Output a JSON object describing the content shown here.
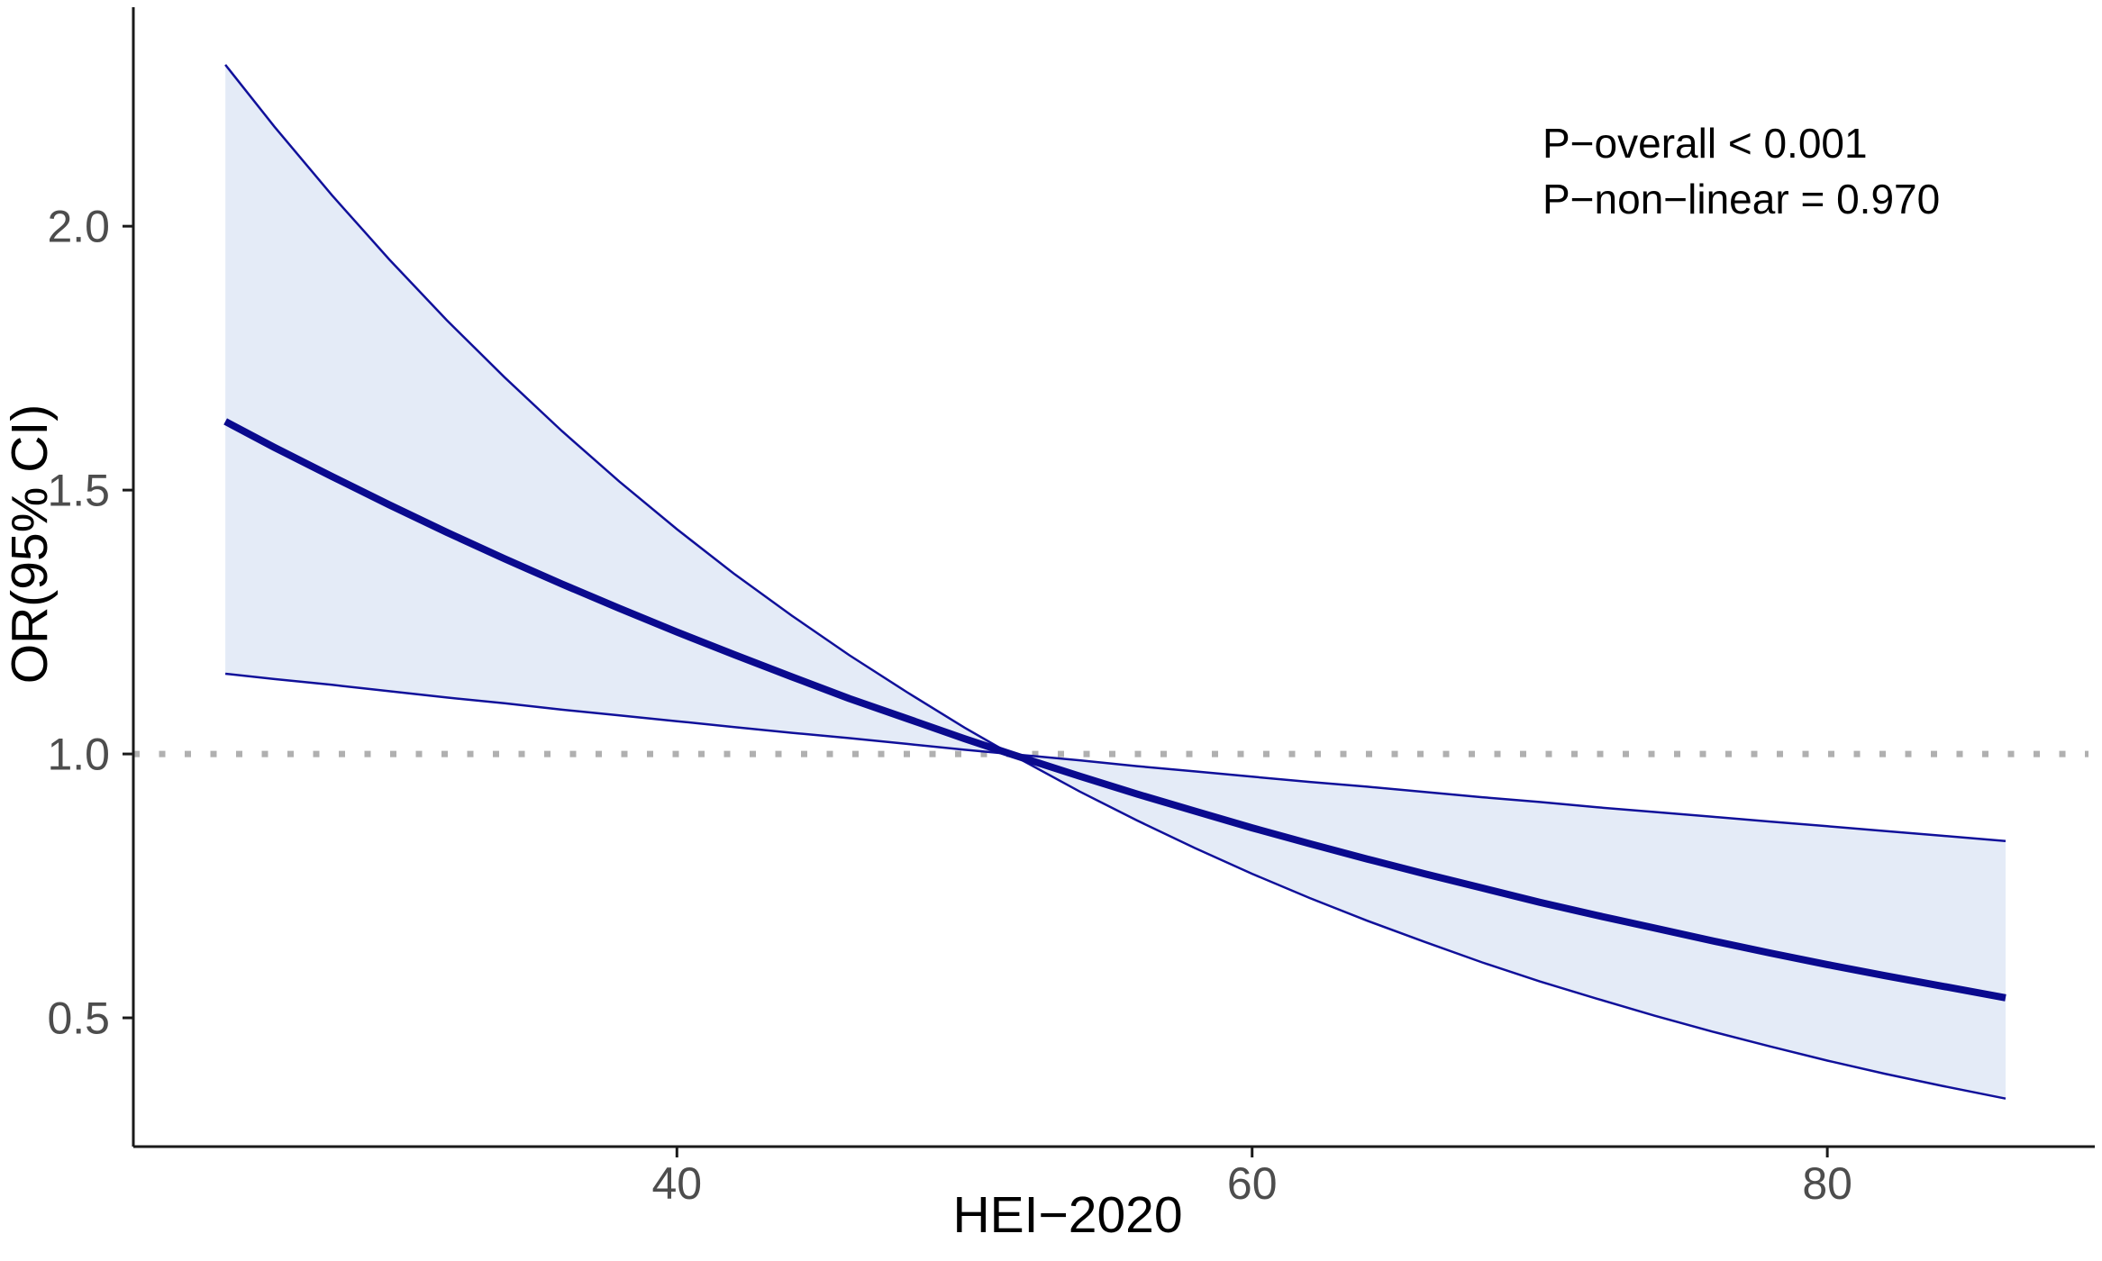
{
  "annotations": {
    "p_overall": "P−overall < 0.001",
    "p_nonlinear": "P−non−linear = 0.970"
  },
  "colors": {
    "line": "#0a0a8e",
    "ci_line": "#10109a",
    "ribbon": "#e4ebf7",
    "reference_line": "#b0b0b0",
    "axis_line": "#1a1a1a",
    "tick_label": "#4d4d4d",
    "annotation_text": "#000000"
  },
  "chart_data": {
    "type": "line",
    "title": "",
    "xlabel": "HEI−2020",
    "ylabel": "OR(95% CI)",
    "x_ticks": [
      40,
      60,
      80
    ],
    "y_ticks": [
      0.5,
      1.0,
      1.5,
      2.0
    ],
    "xlim": [
      21.1,
      89.3
    ],
    "ylim": [
      0.256,
      2.415
    ],
    "grid": "off",
    "legend": "none",
    "reference_line_y": 1.0,
    "or_equals_1_at_x": 51.6,
    "annotations": [
      "P−overall < 0.001",
      "P−non−linear = 0.970"
    ],
    "series": [
      {
        "name": "OR estimate",
        "style": "thick solid navy line"
      },
      {
        "name": "95% CI band",
        "style": "light blue ribbon with thin navy borders"
      }
    ],
    "points": [
      {
        "x": 24.3,
        "or": 1.63,
        "lcl": 1.152,
        "ucl": 2.306
      },
      {
        "x": 26,
        "or": 1.581,
        "lcl": 1.142,
        "ucl": 2.189
      },
      {
        "x": 28,
        "or": 1.526,
        "lcl": 1.131,
        "ucl": 2.059
      },
      {
        "x": 30,
        "or": 1.472,
        "lcl": 1.119,
        "ucl": 1.937
      },
      {
        "x": 32,
        "or": 1.42,
        "lcl": 1.107,
        "ucl": 1.822
      },
      {
        "x": 34,
        "or": 1.37,
        "lcl": 1.096,
        "ucl": 1.714
      },
      {
        "x": 36,
        "or": 1.322,
        "lcl": 1.084,
        "ucl": 1.612
      },
      {
        "x": 38,
        "or": 1.276,
        "lcl": 1.073,
        "ucl": 1.516
      },
      {
        "x": 40,
        "or": 1.231,
        "lcl": 1.062,
        "ucl": 1.426
      },
      {
        "x": 42,
        "or": 1.188,
        "lcl": 1.051,
        "ucl": 1.341
      },
      {
        "x": 44,
        "or": 1.146,
        "lcl": 1.04,
        "ucl": 1.262
      },
      {
        "x": 46,
        "or": 1.105,
        "lcl": 1.03,
        "ucl": 1.187
      },
      {
        "x": 48,
        "or": 1.067,
        "lcl": 1.019,
        "ucl": 1.117
      },
      {
        "x": 50,
        "or": 1.029,
        "lcl": 1.008,
        "ucl": 1.05
      },
      {
        "x": 51.6,
        "or": 1.0,
        "lcl": 1.0,
        "ucl": 1.0
      },
      {
        "x": 54,
        "or": 0.958,
        "lcl": 0.929,
        "ucl": 0.988
      },
      {
        "x": 56,
        "or": 0.924,
        "lcl": 0.874,
        "ucl": 0.977
      },
      {
        "x": 58,
        "or": 0.892,
        "lcl": 0.822,
        "ucl": 0.967
      },
      {
        "x": 60,
        "or": 0.86,
        "lcl": 0.773,
        "ucl": 0.957
      },
      {
        "x": 62,
        "or": 0.83,
        "lcl": 0.727,
        "ucl": 0.947
      },
      {
        "x": 64,
        "or": 0.801,
        "lcl": 0.684,
        "ucl": 0.938
      },
      {
        "x": 66,
        "or": 0.773,
        "lcl": 0.644,
        "ucl": 0.928
      },
      {
        "x": 68,
        "or": 0.746,
        "lcl": 0.605,
        "ucl": 0.918
      },
      {
        "x": 70,
        "or": 0.719,
        "lcl": 0.569,
        "ucl": 0.909
      },
      {
        "x": 72,
        "or": 0.694,
        "lcl": 0.536,
        "ucl": 0.899
      },
      {
        "x": 74,
        "or": 0.67,
        "lcl": 0.504,
        "ucl": 0.89
      },
      {
        "x": 76,
        "or": 0.646,
        "lcl": 0.474,
        "ucl": 0.881
      },
      {
        "x": 78,
        "or": 0.623,
        "lcl": 0.446,
        "ucl": 0.872
      },
      {
        "x": 80,
        "or": 0.601,
        "lcl": 0.419,
        "ucl": 0.863
      },
      {
        "x": 82,
        "or": 0.58,
        "lcl": 0.394,
        "ucl": 0.854
      },
      {
        "x": 84,
        "or": 0.56,
        "lcl": 0.371,
        "ucl": 0.845
      },
      {
        "x": 86.2,
        "or": 0.538,
        "lcl": 0.347,
        "ucl": 0.835
      }
    ]
  }
}
